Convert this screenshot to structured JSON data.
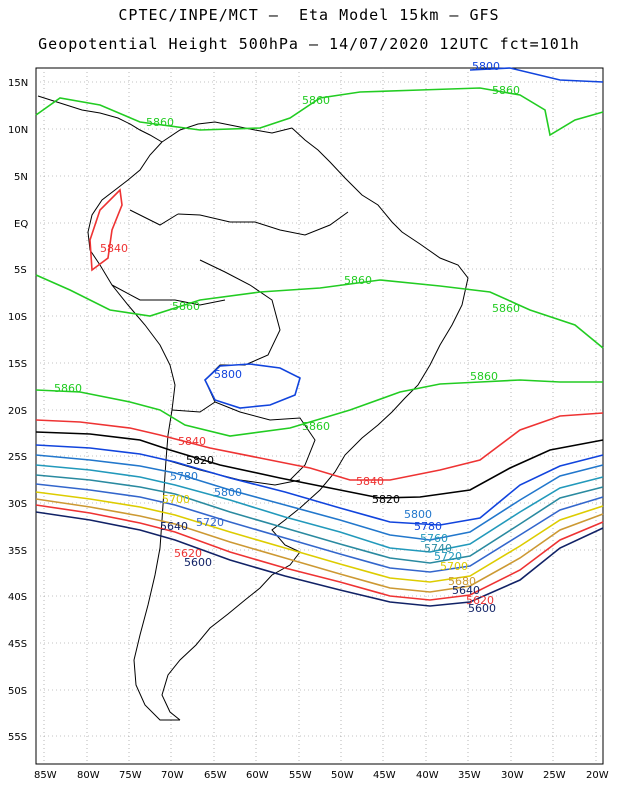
{
  "header": {
    "line1": "CPTEC/INPE/MCT –  Eta Model 15km – GFS",
    "line2": "Geopotential Height 500hPa – 14/07/2020 12UTC fct=101h"
  },
  "axes": {
    "lat_labels": [
      "15N",
      "10N",
      "5N",
      "EQ",
      "5S",
      "10S",
      "15S",
      "20S",
      "25S",
      "30S",
      "35S",
      "40S",
      "45S",
      "50S",
      "55S"
    ],
    "lon_labels": [
      "85W",
      "80W",
      "75W",
      "70W",
      "65W",
      "60W",
      "55W",
      "50W",
      "45W",
      "40W",
      "35W",
      "30W",
      "25W",
      "20W"
    ]
  },
  "colors": {
    "c5860": "#22cc22",
    "c5840": "#ee3333",
    "c5820": "#000000",
    "c5800": "#1144dd",
    "c5780": "#2277cc",
    "c5760": "#2299bb",
    "c5740": "#2a8aa0",
    "c5720": "#3366cc",
    "c5700": "#ddcc00",
    "c5680": "#cc9933",
    "c5600": "#112266"
  },
  "contours": {
    "green": "5860",
    "red": "5840",
    "black": "5820",
    "blue": "5800",
    "c5780": "5780",
    "c5760": "5760",
    "c5740": "5740",
    "c5720": "5720",
    "yellow": "5700",
    "orange": "5680",
    "navy": "5600"
  }
}
